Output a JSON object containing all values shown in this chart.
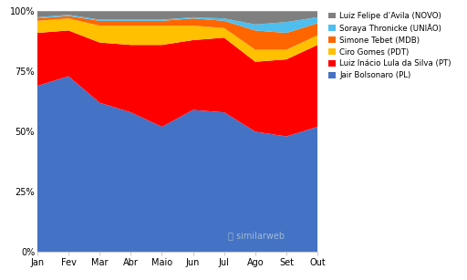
{
  "months": [
    "Jan",
    "Fev",
    "Mar",
    "Abr",
    "Maio",
    "Jun",
    "Jul",
    "Ago",
    "Set",
    "Out"
  ],
  "bolsonaro": [
    69,
    73,
    62,
    58,
    52,
    59,
    58,
    50,
    48,
    52
  ],
  "lula": [
    22,
    19,
    25,
    28,
    34,
    29,
    31,
    29,
    32,
    34
  ],
  "ciro": [
    5,
    5,
    7,
    8,
    8,
    6,
    4,
    5,
    4,
    4
  ],
  "tebet": [
    1,
    1,
    2,
    2,
    2,
    3,
    3,
    8,
    7,
    5
  ],
  "soraya": [
    0.5,
    0.5,
    0.5,
    0.5,
    0.5,
    0.5,
    1.0,
    2.5,
    4.5,
    2.5
  ],
  "avila": [
    2.5,
    1.5,
    3.5,
    3.5,
    3.5,
    2.5,
    3.0,
    5.5,
    4.5,
    2.5
  ],
  "colors": {
    "bolsonaro": "#4472C4",
    "lula": "#FF0000",
    "ciro": "#FFC000",
    "tebet": "#FF6600",
    "soraya": "#4DBEEE",
    "avila": "#7F7F7F"
  },
  "labels": {
    "bolsonaro": "Jair Bolsonaro (PL)",
    "lula": "Luiz Inácio Lula da Silva (PT)",
    "ciro": "Ciro Gomes (PDT)",
    "tebet": "Simone Tebet (MDB)",
    "soraya": "Soraya Thronicke (UNIÃO)",
    "avila": "Luiz Felipe d’Avila (NOVO)"
  },
  "background_color": "#ffffff",
  "yticks": [
    0,
    25,
    50,
    75,
    100
  ]
}
